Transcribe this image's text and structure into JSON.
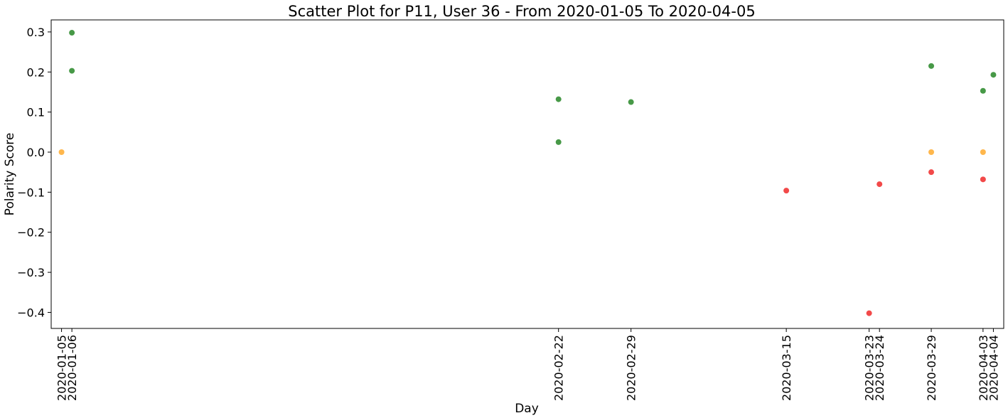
{
  "chart_data": {
    "type": "scatter",
    "title": "Scatter Plot for P11, User 36 - From 2020-01-05 To 2020-04-05",
    "xlabel": "Day",
    "ylabel": "Polarity Score",
    "x_type": "date",
    "xlim": [
      "2020-01-04",
      "2020-04-05"
    ],
    "ylim": [
      -0.44,
      0.33
    ],
    "grid": false,
    "x_ticks": [
      "2020-01-05",
      "2020-01-06",
      "2020-02-22",
      "2020-02-29",
      "2020-03-15",
      "2020-03-23",
      "2020-03-24",
      "2020-03-29",
      "2020-04-03",
      "2020-04-04"
    ],
    "y_ticks": [
      {
        "value": 0.3,
        "label": "0.3"
      },
      {
        "value": 0.2,
        "label": "0.2"
      },
      {
        "value": 0.1,
        "label": "0.1"
      },
      {
        "value": 0.0,
        "label": "0.0"
      },
      {
        "value": -0.1,
        "label": "−0.1"
      },
      {
        "value": -0.2,
        "label": "−0.2"
      },
      {
        "value": -0.3,
        "label": "−0.3"
      },
      {
        "value": -0.4,
        "label": "−0.4"
      }
    ],
    "colors": {
      "positive": "#2e8b2e",
      "neutral": "#ffad33",
      "negative": "#f03030"
    },
    "points": [
      {
        "x": "2020-01-05",
        "y": 0.0,
        "sentiment": "neutral"
      },
      {
        "x": "2020-01-06",
        "y": 0.298,
        "sentiment": "positive"
      },
      {
        "x": "2020-01-06",
        "y": 0.203,
        "sentiment": "positive"
      },
      {
        "x": "2020-02-22",
        "y": 0.132,
        "sentiment": "positive"
      },
      {
        "x": "2020-02-22",
        "y": 0.025,
        "sentiment": "positive"
      },
      {
        "x": "2020-02-29",
        "y": 0.125,
        "sentiment": "positive"
      },
      {
        "x": "2020-03-15",
        "y": -0.096,
        "sentiment": "negative"
      },
      {
        "x": "2020-03-23",
        "y": -0.402,
        "sentiment": "negative"
      },
      {
        "x": "2020-03-24",
        "y": -0.08,
        "sentiment": "negative"
      },
      {
        "x": "2020-03-29",
        "y": 0.215,
        "sentiment": "positive"
      },
      {
        "x": "2020-03-29",
        "y": 0.0,
        "sentiment": "neutral"
      },
      {
        "x": "2020-03-29",
        "y": -0.05,
        "sentiment": "negative"
      },
      {
        "x": "2020-04-03",
        "y": 0.153,
        "sentiment": "positive"
      },
      {
        "x": "2020-04-03",
        "y": 0.0,
        "sentiment": "neutral"
      },
      {
        "x": "2020-04-03",
        "y": -0.068,
        "sentiment": "negative"
      },
      {
        "x": "2020-04-04",
        "y": 0.193,
        "sentiment": "positive"
      }
    ]
  }
}
